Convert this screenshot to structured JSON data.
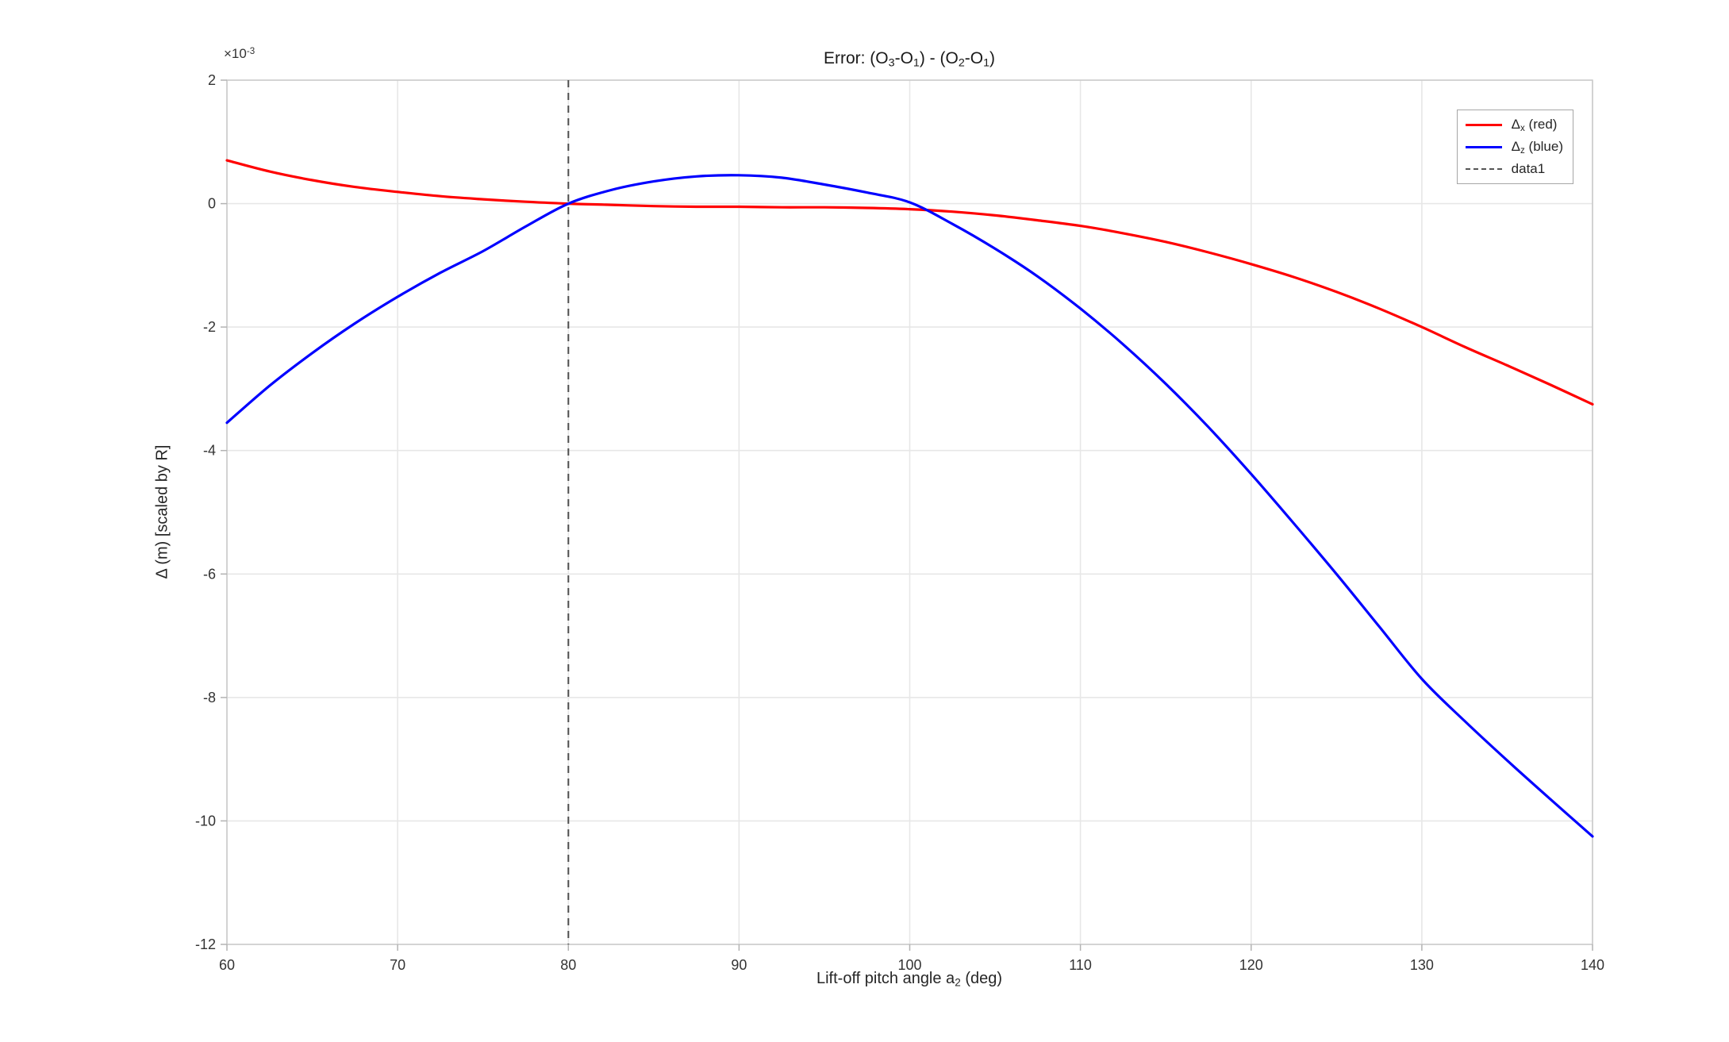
{
  "figure": {
    "title_segments": [
      {
        "text": "Error:  (O"
      },
      {
        "text": "3",
        "sub": true
      },
      {
        "text": "-O"
      },
      {
        "text": "1",
        "sub": true
      },
      {
        "text": ")  -  (O"
      },
      {
        "text": "2",
        "sub": true
      },
      {
        "text": "-O"
      },
      {
        "text": "1",
        "sub": true
      },
      {
        "text": ")"
      }
    ],
    "xlabel_segments": [
      {
        "text": "Lift-off  pitch  angle  a"
      },
      {
        "text": "2",
        "sub": true
      },
      {
        "text": "  (deg)"
      }
    ],
    "ylabel": "Δ  (m)   [scaled  by  R]",
    "offset_segments": [
      {
        "text": "×10"
      },
      {
        "text": "-3",
        "sup": true
      }
    ]
  },
  "legend": {
    "entries": [
      {
        "key": "delta-x",
        "label_segments": [
          {
            "text": "Δ"
          },
          {
            "text": "x",
            "sub": true
          },
          {
            "text": "  (red)"
          }
        ]
      },
      {
        "key": "delta-z",
        "label_segments": [
          {
            "text": "Δ"
          },
          {
            "text": "z",
            "sub": true
          },
          {
            "text": "  (blue)"
          }
        ]
      },
      {
        "key": "data1",
        "label_segments": [
          {
            "text": "data1"
          }
        ]
      }
    ]
  },
  "chart_data": {
    "type": "line",
    "title": "Error: (O3-O1) - (O2-O1)",
    "xlabel": "Lift-off pitch angle a2 (deg)",
    "ylabel": "Δ (m) [scaled by R]",
    "y_axis_multiplier": "1e-3",
    "xlim": [
      60,
      140
    ],
    "ylim_milli": [
      -12,
      2
    ],
    "xticks": [
      60,
      70,
      80,
      90,
      100,
      110,
      120,
      130,
      140
    ],
    "yticks_milli": [
      2,
      0,
      -2,
      -4,
      -6,
      -8,
      -10,
      -12
    ],
    "grid": true,
    "legend_position": "top-right",
    "colors": {
      "grid": "#e7e7e7",
      "box": "#c9c9c9",
      "tick": "#b3b3b3",
      "tick_label": "#333333",
      "vline": "#4d4d4d"
    },
    "series": [
      {
        "name": "Δ_x (red)",
        "color": "#ff0000",
        "style": "solid",
        "x": [
          60,
          62.5,
          65,
          67.5,
          70,
          72.5,
          75,
          77.5,
          80,
          82.5,
          85,
          87.5,
          90,
          92.5,
          95,
          97.5,
          100,
          102.5,
          105,
          107.5,
          110,
          112.5,
          115,
          117.5,
          120,
          122.5,
          125,
          127.5,
          130,
          132.5,
          135,
          137.5,
          140
        ],
        "y_milli": [
          0.7,
          0.52,
          0.38,
          0.27,
          0.19,
          0.12,
          0.07,
          0.03,
          0.0,
          -0.02,
          -0.04,
          -0.05,
          -0.05,
          -0.06,
          -0.06,
          -0.07,
          -0.09,
          -0.13,
          -0.19,
          -0.27,
          -0.36,
          -0.48,
          -0.62,
          -0.79,
          -0.98,
          -1.19,
          -1.43,
          -1.7,
          -2.0,
          -2.32,
          -2.62,
          -2.93,
          -3.25
        ]
      },
      {
        "name": "Δ_z (blue)",
        "color": "#0000ff",
        "style": "solid",
        "x": [
          60,
          62.5,
          65,
          67.5,
          70,
          72.5,
          75,
          77.5,
          80,
          82.5,
          85,
          87.5,
          90,
          92.5,
          95,
          97.5,
          100,
          102.5,
          105,
          107.5,
          110,
          112.5,
          115,
          117.5,
          120,
          122.5,
          125,
          127.5,
          130,
          132.5,
          135,
          137.5,
          140
        ],
        "y_milli": [
          -3.55,
          -2.95,
          -2.42,
          -1.94,
          -1.51,
          -1.12,
          -0.77,
          -0.37,
          0.0,
          0.22,
          0.36,
          0.44,
          0.46,
          0.42,
          0.31,
          0.18,
          0.02,
          -0.33,
          -0.73,
          -1.18,
          -1.7,
          -2.28,
          -2.92,
          -3.62,
          -4.38,
          -5.18,
          -6.0,
          -6.85,
          -7.7,
          -8.38,
          -9.02,
          -9.64,
          -10.25
        ]
      },
      {
        "name": "data1",
        "type": "vline",
        "style": "dashed",
        "color": "#4d4d4d",
        "x_value": 80
      }
    ]
  }
}
